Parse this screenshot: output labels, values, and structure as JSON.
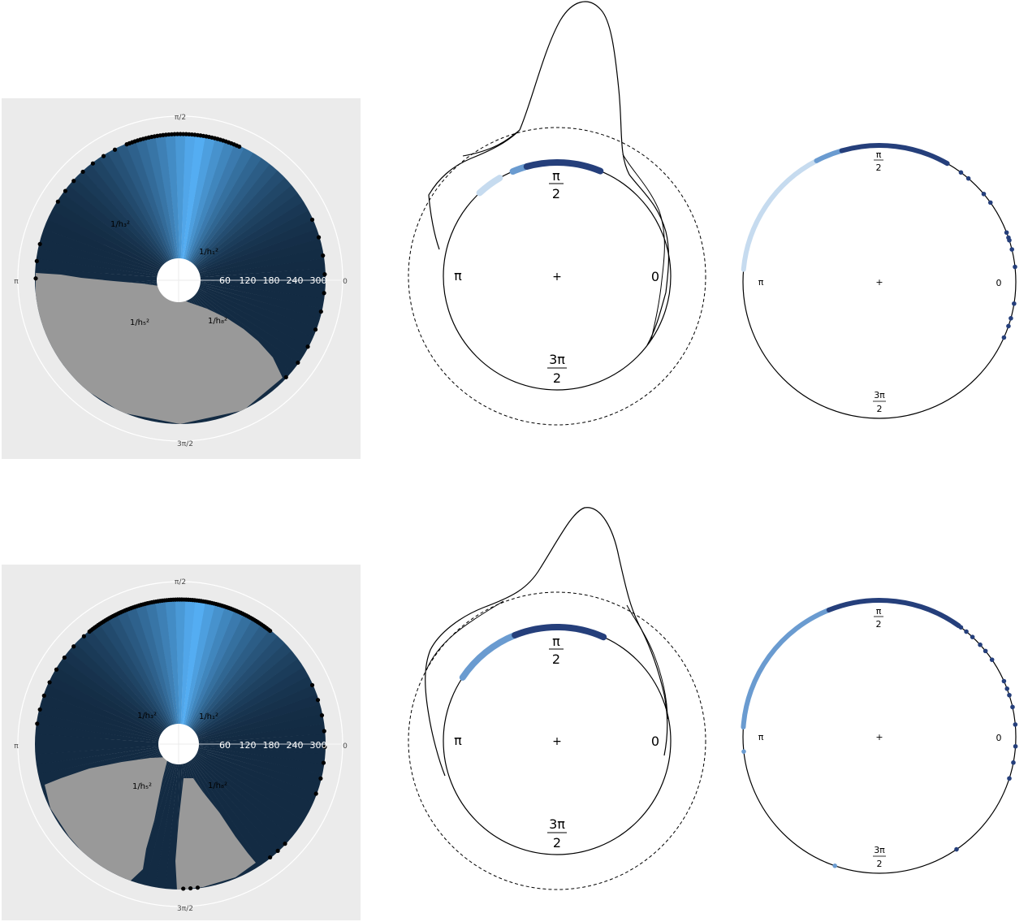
{
  "panel_labels": {
    "theta_pi_over_2": "π/2",
    "theta_pi": "π",
    "theta_0": "0",
    "theta_3pi_over_2": "3π/2",
    "pi": "π",
    "zero": "0",
    "pi_num": "π",
    "three_pi_num": "3π",
    "two_den": "2",
    "center_mark": "+"
  },
  "chart_data": [
    {
      "type": "heatmap",
      "row": 1,
      "column": 1,
      "coordinate_system": "polar",
      "radial_tick_labels": [
        "60",
        "120",
        "180",
        "240",
        "300"
      ],
      "angular_tick_labels": [
        "π/2",
        "π",
        "3π/2",
        "0"
      ],
      "region_labels": [
        "1/h₃²",
        "1/h₁²",
        "1/h₅²",
        "1/h₈²"
      ],
      "fill_colors": {
        "dark": "#132b43",
        "light": "#56b1f7",
        "grey": "#999999"
      },
      "grid": true,
      "background": "#ebebeb"
    },
    {
      "type": "line",
      "row": 1,
      "column": 2,
      "coordinate_system": "circular",
      "description_of_marks": "circular density curve with data arcs on unit circle and dashed reference circle",
      "angular_labels": [
        "π/2",
        "π",
        "0",
        "3π/2"
      ],
      "arc_segments": [
        {
          "from": 2.1,
          "to": 2.32,
          "color": "#c6dbef"
        },
        {
          "from": 1.86,
          "to": 1.97,
          "color": "#6a9bd0"
        },
        {
          "from": 1.18,
          "to": 1.84,
          "color": "#253f7b"
        }
      ]
    },
    {
      "type": "scatter",
      "row": 1,
      "column": 3,
      "coordinate_system": "circular",
      "angular_labels": [
        "π/2",
        "π",
        "0",
        "3π/2"
      ],
      "arc_segments": [
        {
          "from": 2.05,
          "to": 3.05,
          "color": "#c6dbef"
        },
        {
          "from": 1.85,
          "to": 2.05,
          "color": "#6a9bd0"
        },
        {
          "from": 1.05,
          "to": 1.85,
          "color": "#253f7b"
        }
      ],
      "points": [
        0.93,
        0.86,
        0.7,
        0.62,
        0.37,
        0.33,
        0.31,
        0.24,
        0.11,
        -0.16,
        -0.27,
        -0.33,
        -0.42
      ],
      "point_color": "#253f7b"
    },
    {
      "type": "heatmap",
      "row": 2,
      "column": 1,
      "coordinate_system": "polar",
      "radial_tick_labels": [
        "60",
        "120",
        "180",
        "240",
        "300"
      ],
      "angular_tick_labels": [
        "π/2",
        "π",
        "3π/2",
        "0"
      ],
      "region_labels": [
        "1/h₃²",
        "1/h₁²",
        "1/h₅²",
        "1/h₈²"
      ],
      "fill_colors": {
        "dark": "#132b43",
        "light": "#56b1f7",
        "grey": "#999999"
      },
      "grid": true,
      "background": "#ebebeb"
    },
    {
      "type": "line",
      "row": 2,
      "column": 2,
      "coordinate_system": "circular",
      "description_of_marks": "circular density curve with data arcs on unit circle and dashed reference circle",
      "angular_labels": [
        "π/2",
        "π",
        "0",
        "3π/2"
      ],
      "arc_segments": [
        {
          "from": 1.95,
          "to": 2.55,
          "color": "#6a9bd0"
        },
        {
          "from": 1.15,
          "to": 1.95,
          "color": "#253f7b"
        }
      ]
    },
    {
      "type": "scatter",
      "row": 2,
      "column": 3,
      "coordinate_system": "circular",
      "angular_labels": [
        "π/2",
        "π",
        "0",
        "3π/2"
      ],
      "arc_segments": [
        {
          "from": 1.95,
          "to": 3.07,
          "color": "#6a9bd0"
        },
        {
          "from": 0.95,
          "to": 1.95,
          "color": "#253f7b"
        }
      ],
      "points": [
        0.93,
        0.88,
        0.82,
        0.74,
        0.68,
        0.6,
        0.42,
        0.36,
        0.31,
        0.22,
        0.09,
        -0.07,
        -0.19,
        -0.31,
        -0.97
      ],
      "light_points": [
        3.25,
        4.38
      ],
      "point_color": "#253f7b"
    }
  ]
}
